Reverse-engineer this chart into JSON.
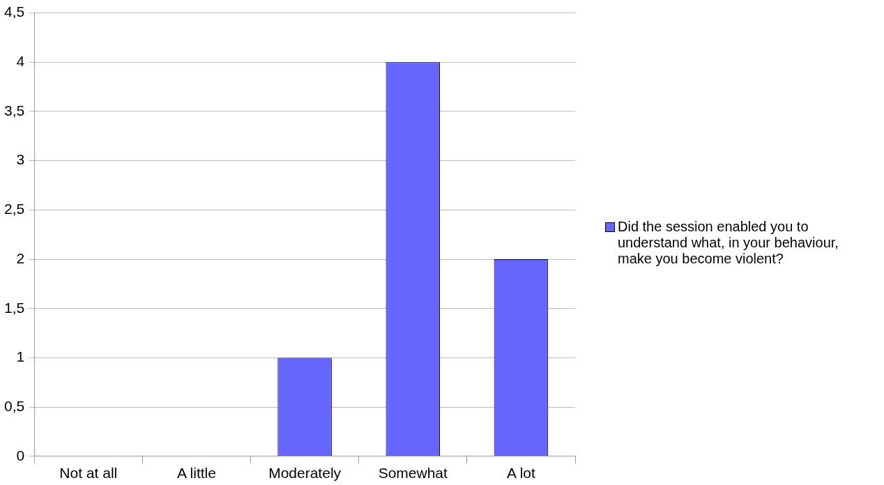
{
  "chart_data": {
    "type": "bar",
    "categories": [
      "Not at all",
      "A little",
      "Moderately",
      "Somewhat",
      "A lot"
    ],
    "series": [
      {
        "name": "Did the session enabled you to understand what, in your behaviour, make you become violent?",
        "color": "#6666ff",
        "values": [
          0,
          0,
          1,
          4,
          2
        ]
      }
    ],
    "ylim": [
      0,
      4.5
    ],
    "yticks": [
      0,
      {
        "value": 0.5,
        "label": "0,5"
      },
      1,
      {
        "value": 1.5,
        "label": "1,5"
      },
      2,
      {
        "value": 2.5,
        "label": "2,5"
      },
      3,
      {
        "value": 3.5,
        "label": "3,5"
      },
      4,
      {
        "value": 4.5,
        "label": "4,5"
      }
    ],
    "grid": "y",
    "legend": "right"
  }
}
